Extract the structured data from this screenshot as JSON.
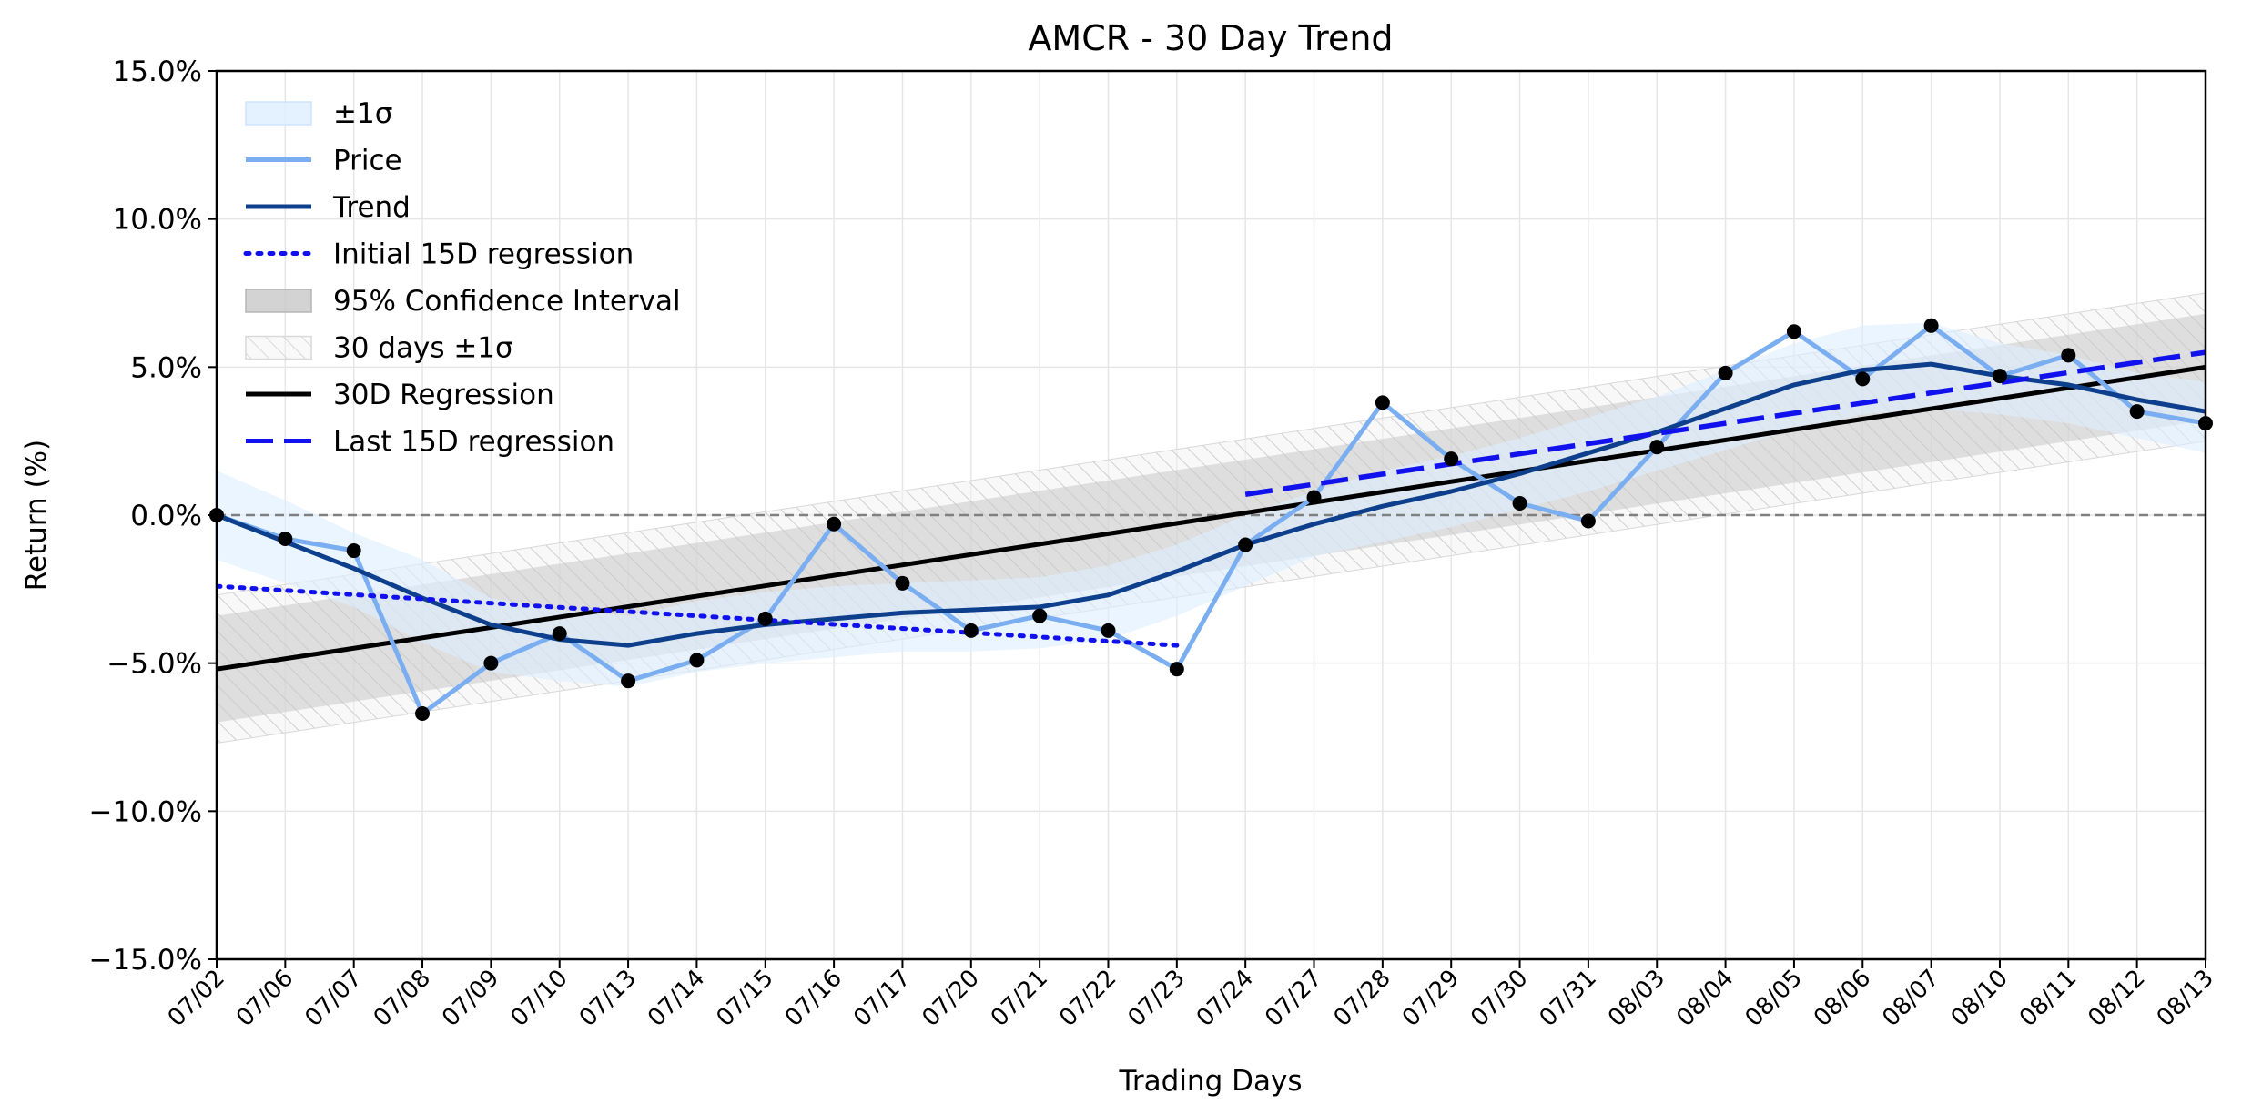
{
  "chart_data": {
    "type": "line",
    "title": "AMCR - 30 Day Trend",
    "xlabel": "Trading Days",
    "ylabel": "Return (%)",
    "ylim": [
      -15,
      15
    ],
    "yticks": [
      -15,
      -10,
      -5,
      0,
      5,
      10,
      15
    ],
    "ytick_labels": [
      "−15.0%",
      "−10.0%",
      "−5.0%",
      "0.0%",
      "5.0%",
      "10.0%",
      "15.0%"
    ],
    "grid": true,
    "legend_position": "top-left",
    "categories": [
      "07/02",
      "07/06",
      "07/07",
      "07/08",
      "07/09",
      "07/10",
      "07/13",
      "07/14",
      "07/15",
      "07/16",
      "07/17",
      "07/20",
      "07/21",
      "07/22",
      "07/23",
      "07/24",
      "07/27",
      "07/28",
      "07/29",
      "07/30",
      "07/31",
      "08/03",
      "08/04",
      "08/05",
      "08/06",
      "08/07",
      "08/10",
      "08/11",
      "08/12",
      "08/13"
    ],
    "series": [
      {
        "name": "Price",
        "color": "#7aaef0",
        "values": [
          0.0,
          -0.8,
          -1.2,
          -6.7,
          -5.0,
          -4.0,
          -5.6,
          -4.9,
          -3.5,
          -0.3,
          -2.3,
          -3.9,
          -3.4,
          -3.9,
          -5.2,
          -1.0,
          0.6,
          3.8,
          1.9,
          0.4,
          -0.2,
          2.3,
          4.8,
          6.2,
          4.6,
          6.4,
          4.7,
          5.4,
          3.5,
          3.1
        ]
      },
      {
        "name": "Trend",
        "color": "#0d3f8c",
        "values": [
          0.0,
          -0.9,
          -1.8,
          -2.8,
          -3.7,
          -4.2,
          -4.4,
          -4.0,
          -3.7,
          -3.5,
          -3.3,
          -3.2,
          -3.1,
          -2.7,
          -1.9,
          -1.0,
          -0.3,
          0.3,
          0.8,
          1.4,
          2.1,
          2.8,
          3.6,
          4.4,
          4.9,
          5.1,
          4.7,
          4.4,
          3.9,
          3.5
        ]
      },
      {
        "name": "Initial 15D regression",
        "color": "#1111ee",
        "style": "dotted",
        "range": [
          0,
          14
        ],
        "start": -2.4,
        "end": -4.4
      },
      {
        "name": "30D Regression",
        "color": "#000000",
        "style": "solid",
        "range": [
          0,
          29
        ],
        "start": -5.2,
        "end": 5.0
      },
      {
        "name": "Last 15D regression",
        "color": "#1111ee",
        "style": "dashed",
        "range": [
          15,
          29
        ],
        "start": 0.7,
        "end": 5.5
      }
    ],
    "bands": [
      {
        "name": "±1σ",
        "color": "#ddeeff",
        "upper": [
          1.5,
          0.5,
          -0.6,
          -1.5,
          -2.8,
          -3.2,
          -3.4,
          -2.9,
          -2.6,
          -2.4,
          -2.3,
          -2.2,
          -2.1,
          -1.7,
          -1.0,
          0.0,
          0.8,
          1.5,
          2.0,
          2.6,
          3.3,
          4.0,
          4.9,
          5.8,
          6.4,
          6.5,
          5.8,
          5.4,
          4.8,
          4.5
        ],
        "lower": [
          -1.5,
          -2.3,
          -3.1,
          -4.3,
          -5.3,
          -5.6,
          -5.8,
          -5.3,
          -5.0,
          -4.8,
          -4.6,
          -4.6,
          -4.5,
          -4.2,
          -3.4,
          -2.4,
          -1.4,
          -0.9,
          -0.4,
          0.2,
          0.8,
          1.5,
          2.2,
          2.9,
          3.4,
          3.6,
          3.4,
          3.1,
          2.6,
          2.1
        ]
      },
      {
        "name": "95% Confidence Interval",
        "color": "#c8c8c8",
        "center_start": -5.2,
        "center_end": 5.0,
        "half_width": 1.8
      },
      {
        "name": "30 days ±1σ",
        "color": "#e6e6e6",
        "hatch": true,
        "center_start": -5.2,
        "center_end": 5.0,
        "half_width": 2.5
      }
    ],
    "reference_line": {
      "y": 0,
      "color": "#808080",
      "style": "dashed"
    },
    "legend": [
      "±1σ",
      "Price",
      "Trend",
      "Initial 15D regression",
      "95% Confidence Interval",
      "30 days ±1σ",
      "30D Regression",
      "Last 15D regression"
    ]
  }
}
